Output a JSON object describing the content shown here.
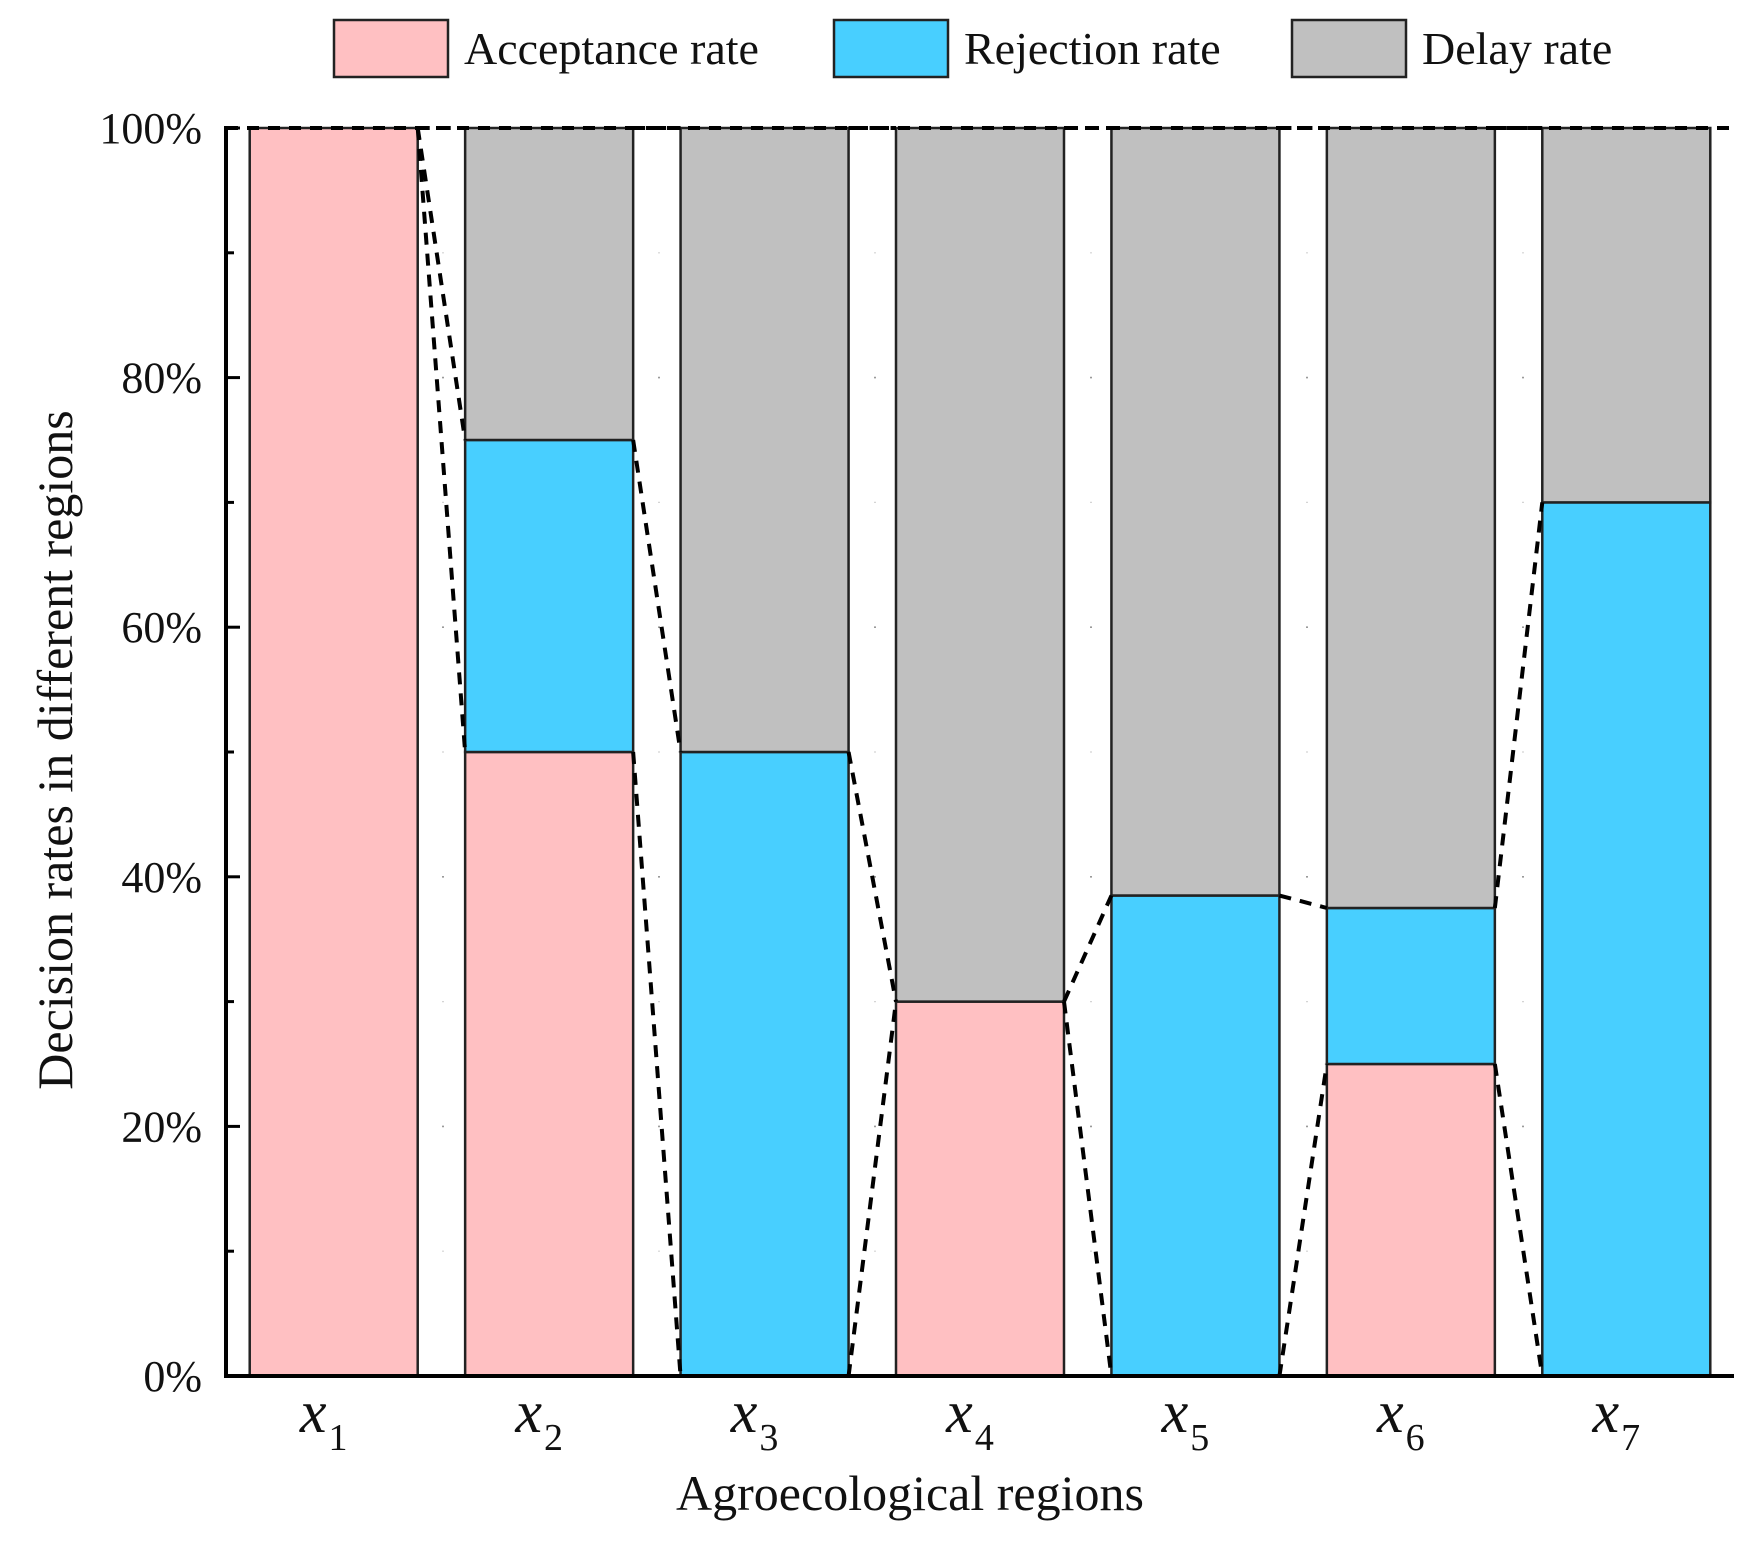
{
  "chart_data": {
    "type": "bar",
    "stacked": true,
    "normalized": true,
    "title": "",
    "xlabel": "Agroecological regions",
    "ylabel": "Decision rates in different regions",
    "ylim": [
      0,
      100
    ],
    "y_ticks": [
      "0%",
      "20%",
      "40%",
      "60%",
      "80%",
      "100%"
    ],
    "y_tick_values": [
      0,
      20,
      40,
      60,
      80,
      100
    ],
    "grid": true,
    "legend_position": "top",
    "categories": [
      {
        "base": "x",
        "sub": "1"
      },
      {
        "base": "x",
        "sub": "2"
      },
      {
        "base": "x",
        "sub": "3"
      },
      {
        "base": "x",
        "sub": "4"
      },
      {
        "base": "x",
        "sub": "5"
      },
      {
        "base": "x",
        "sub": "6"
      },
      {
        "base": "x",
        "sub": "7"
      }
    ],
    "series": [
      {
        "name": "Acceptance rate",
        "color": "#FFC0C2",
        "values": [
          100,
          50,
          0,
          30,
          0,
          25,
          0
        ]
      },
      {
        "name": "Rejection rate",
        "color": "#48CFFF",
        "values": [
          0,
          25,
          50,
          0,
          38.5,
          12.5,
          70
        ]
      },
      {
        "name": "Delay rate",
        "color": "#C0C0C0",
        "values": [
          0,
          25,
          50,
          70,
          61.5,
          62.5,
          30
        ]
      }
    ],
    "connector_lines": "dashed"
  }
}
